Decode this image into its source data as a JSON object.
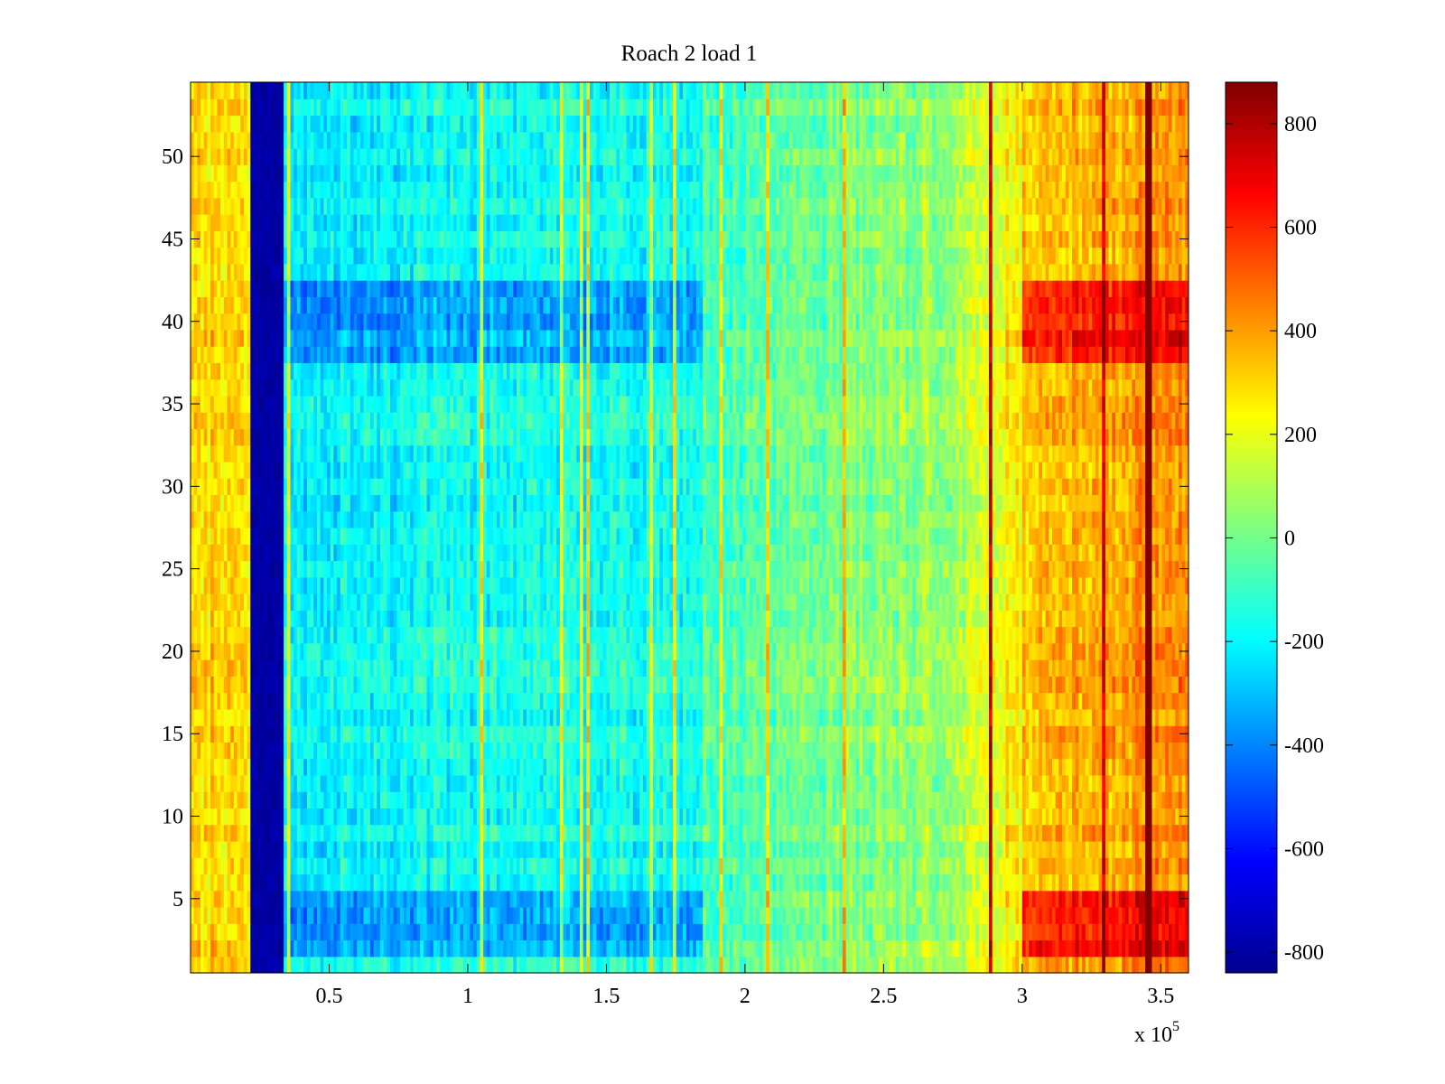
{
  "chart_data": {
    "type": "heatmap",
    "title": "Roach 2 load 1",
    "xlabel": "",
    "ylabel": "",
    "x_exponent_label": "x 10",
    "x_exponent": "5",
    "xlim": [
      0,
      3.6
    ],
    "ylim": [
      0.5,
      54.5
    ],
    "x_ticks": [
      0.5,
      1,
      1.5,
      2,
      2.5,
      3,
      3.5
    ],
    "x_tick_labels": [
      "0.5",
      "1",
      "1.5",
      "2",
      "2.5",
      "3",
      "3.5"
    ],
    "y_ticks": [
      5,
      10,
      15,
      20,
      25,
      30,
      35,
      40,
      45,
      50
    ],
    "y_tick_labels": [
      "5",
      "10",
      "15",
      "20",
      "25",
      "30",
      "35",
      "40",
      "45",
      "50"
    ],
    "rows": 54,
    "colormap": "jet",
    "colorbar": {
      "range": [
        -840,
        880
      ],
      "ticks": [
        -800,
        -600,
        -400,
        -200,
        0,
        200,
        400,
        600,
        800
      ],
      "tick_labels": [
        "-800",
        "-600",
        "-400",
        "-200",
        "0",
        "200",
        "400",
        "600",
        "800"
      ],
      "placement": "right"
    },
    "features": {
      "low_band_x": [
        0.22,
        0.33
      ],
      "low_band_value": -780,
      "high_region_x": [
        3.0,
        3.6
      ],
      "high_region_rows": [
        [
          2,
          5
        ],
        [
          38,
          42
        ]
      ],
      "high_region_value": 650
    },
    "grid": false
  }
}
